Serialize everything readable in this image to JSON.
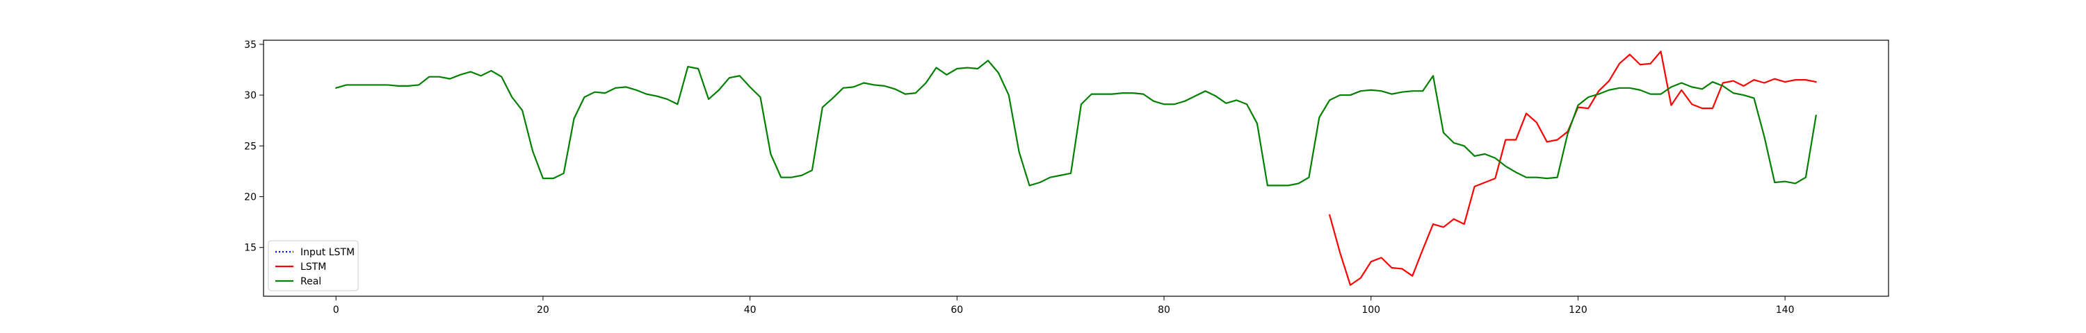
{
  "chart_data": {
    "type": "line",
    "title": "",
    "xlabel": "",
    "ylabel": "",
    "xlim": [
      -7,
      150
    ],
    "ylim": [
      10.2,
      35.4
    ],
    "grid": false,
    "legend_position": "lower-left",
    "x_ticks": [
      0,
      20,
      40,
      60,
      80,
      100,
      120,
      140
    ],
    "y_ticks": [
      15,
      20,
      25,
      30,
      35
    ],
    "series": [
      {
        "name": "Input LSTM",
        "color": "#0000ff",
        "style": "dotted",
        "x": [],
        "values": []
      },
      {
        "name": "LSTM",
        "color": "#ff0000",
        "style": "solid",
        "x": [
          96,
          97,
          98,
          99,
          100,
          101,
          102,
          103,
          104,
          105,
          106,
          107,
          108,
          109,
          110,
          111,
          112,
          113,
          114,
          115,
          116,
          117,
          118,
          119,
          120,
          121,
          122,
          123,
          124,
          125,
          126,
          127,
          128,
          129,
          130,
          131,
          132,
          133,
          134,
          135,
          136,
          137,
          138,
          139,
          140,
          141,
          142,
          143
        ],
        "values": [
          18.2,
          14.5,
          11.3,
          12.0,
          13.6,
          14.0,
          13.0,
          12.9,
          12.2,
          14.8,
          17.3,
          17.0,
          17.8,
          17.3,
          21.0,
          21.4,
          21.8,
          25.6,
          25.6,
          28.2,
          27.3,
          25.4,
          25.6,
          26.4,
          28.8,
          28.7,
          30.4,
          31.4,
          33.1,
          34.0,
          33.0,
          33.1,
          34.3,
          29.0,
          30.5,
          29.1,
          28.7,
          28.7,
          31.2,
          31.4,
          30.9,
          31.5,
          31.2,
          31.6,
          31.3,
          31.5,
          31.5,
          31.3
        ]
      },
      {
        "name": "Real",
        "color": "#008000",
        "style": "solid",
        "x": [
          0,
          1,
          2,
          3,
          4,
          5,
          6,
          7,
          8,
          9,
          10,
          11,
          12,
          13,
          14,
          15,
          16,
          17,
          18,
          19,
          20,
          21,
          22,
          23,
          24,
          25,
          26,
          27,
          28,
          29,
          30,
          31,
          32,
          33,
          34,
          35,
          36,
          37,
          38,
          39,
          40,
          41,
          42,
          43,
          44,
          45,
          46,
          47,
          48,
          49,
          50,
          51,
          52,
          53,
          54,
          55,
          56,
          57,
          58,
          59,
          60,
          61,
          62,
          63,
          64,
          65,
          66,
          67,
          68,
          69,
          70,
          71,
          72,
          73,
          74,
          75,
          76,
          77,
          78,
          79,
          80,
          81,
          82,
          83,
          84,
          85,
          86,
          87,
          88,
          89,
          90,
          91,
          92,
          93,
          94,
          95,
          96,
          97,
          98,
          99,
          100,
          101,
          102,
          103,
          104,
          105,
          106,
          107,
          108,
          109,
          110,
          111,
          112,
          113,
          114,
          115,
          116,
          117,
          118,
          119,
          120,
          121,
          122,
          123,
          124,
          125,
          126,
          127,
          128,
          129,
          130,
          131,
          132,
          133,
          134,
          135,
          136,
          137,
          138,
          139,
          140,
          141,
          142,
          143
        ],
        "values": [
          30.7,
          31.0,
          31.0,
          31.0,
          31.0,
          31.0,
          30.9,
          30.9,
          31.0,
          31.8,
          31.8,
          31.6,
          32.0,
          32.3,
          31.9,
          32.4,
          31.8,
          29.8,
          28.5,
          24.5,
          21.8,
          21.8,
          22.3,
          27.7,
          29.8,
          30.3,
          30.2,
          30.7,
          30.8,
          30.5,
          30.1,
          29.9,
          29.6,
          29.1,
          32.8,
          32.6,
          29.6,
          30.5,
          31.7,
          31.9,
          30.8,
          29.8,
          24.2,
          21.9,
          21.9,
          22.1,
          22.6,
          28.8,
          29.7,
          30.7,
          30.8,
          31.2,
          31.0,
          30.9,
          30.6,
          30.1,
          30.2,
          31.2,
          32.7,
          32.0,
          32.6,
          32.7,
          32.6,
          33.4,
          32.2,
          30.0,
          24.4,
          21.1,
          21.4,
          21.9,
          22.1,
          22.3,
          29.1,
          30.1,
          30.1,
          30.1,
          30.2,
          30.2,
          30.1,
          29.4,
          29.1,
          29.1,
          29.4,
          29.9,
          30.4,
          29.9,
          29.2,
          29.5,
          29.1,
          27.2,
          21.1,
          21.1,
          21.1,
          21.3,
          21.9,
          27.8,
          29.5,
          30.0,
          30.0,
          30.4,
          30.5,
          30.4,
          30.1,
          30.3,
          30.4,
          30.4,
          31.9,
          26.3,
          25.3,
          25.0,
          24.0,
          24.2,
          23.8,
          23.0,
          22.4,
          21.9,
          21.9,
          21.8,
          21.9,
          26.2,
          29.0,
          29.8,
          30.1,
          30.5,
          30.7,
          30.7,
          30.5,
          30.1,
          30.1,
          30.8,
          31.2,
          30.8,
          30.6,
          31.3,
          30.9,
          30.2,
          30.0,
          29.7,
          25.9,
          21.4,
          21.5,
          21.3,
          21.9,
          28.0
        ]
      }
    ]
  }
}
